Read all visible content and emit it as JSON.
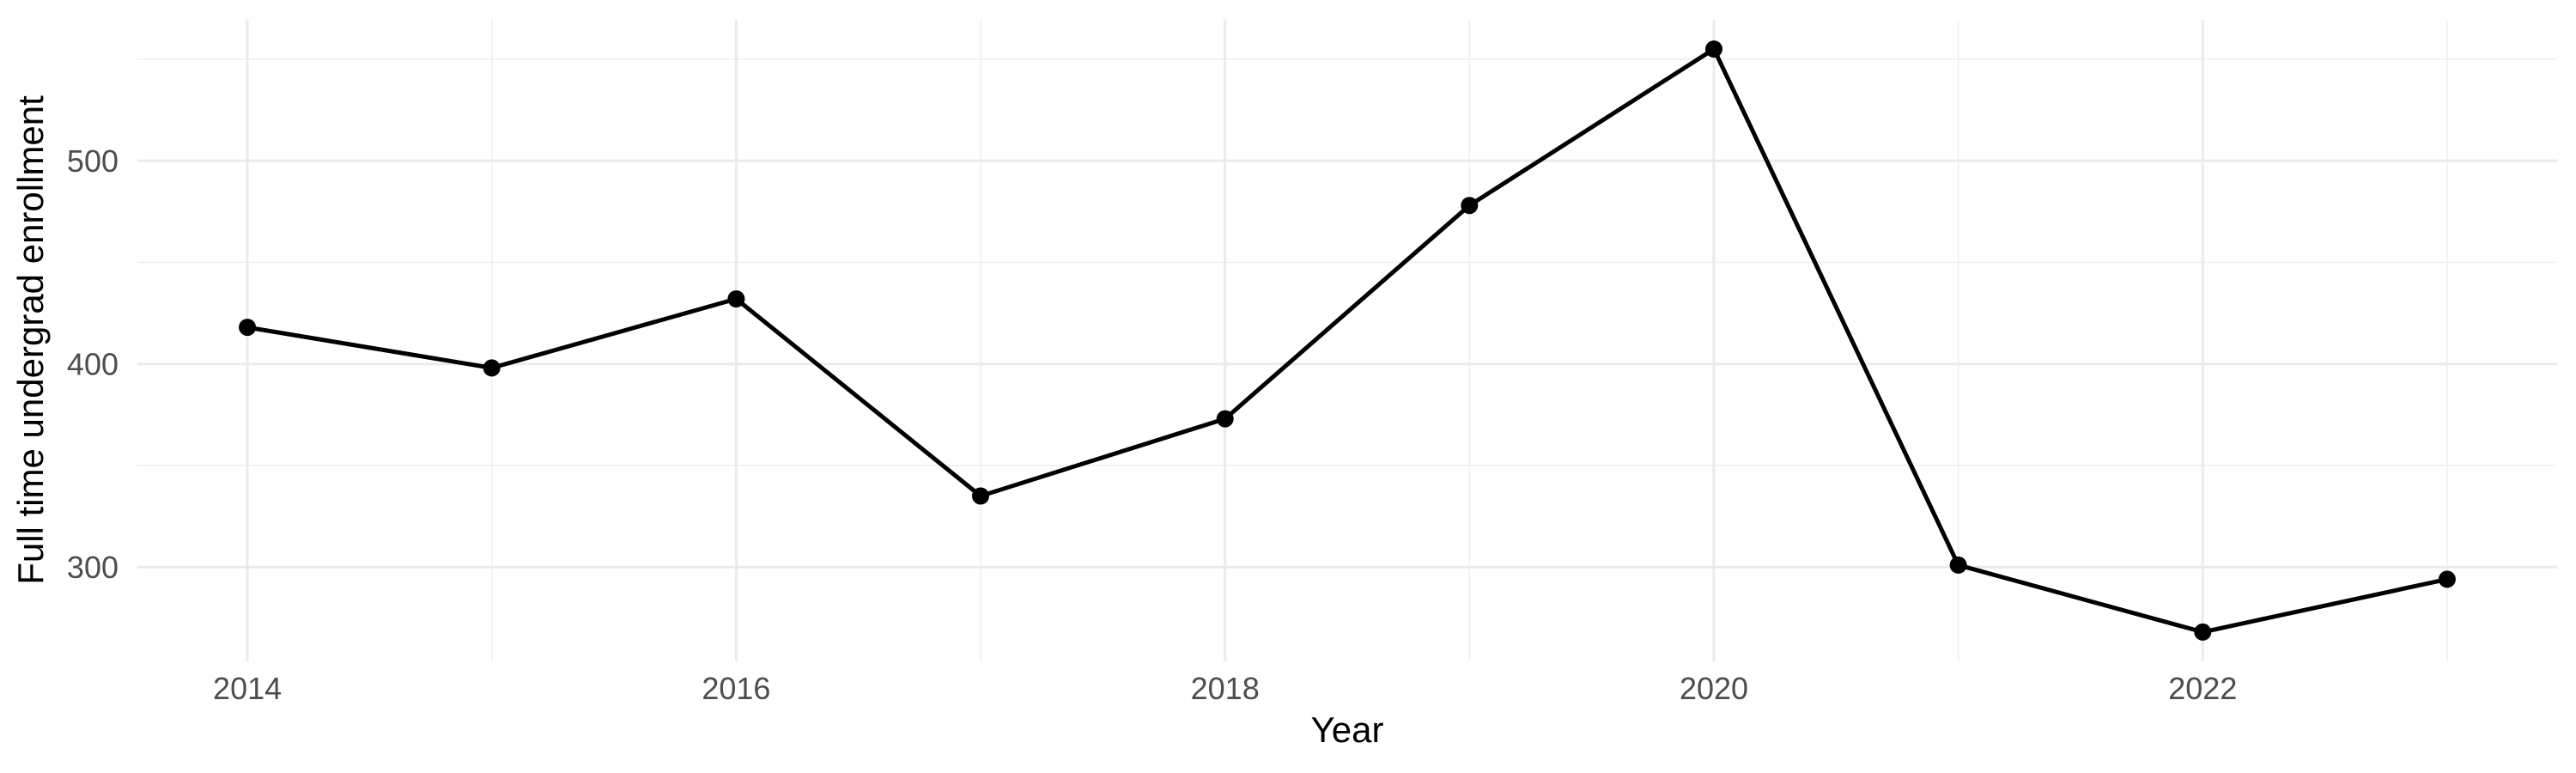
{
  "chart_data": {
    "type": "line",
    "title": "",
    "xlabel": "Year",
    "ylabel": "Full time undergrad enrollment",
    "x": [
      2014,
      2015,
      2016,
      2017,
      2018,
      2019,
      2020,
      2021,
      2022,
      2023
    ],
    "series": [
      {
        "name": "Full time undergrad enrollment",
        "values": [
          418,
          398,
          432,
          335,
          373,
          478,
          555,
          301,
          268,
          294
        ]
      }
    ],
    "x_major_ticks": [
      2014,
      2016,
      2018,
      2020,
      2022
    ],
    "x_tick_labels": [
      "2014",
      "2016",
      "2018",
      "2020",
      "2022"
    ],
    "x_minor_gridlines": [
      2015,
      2017,
      2019,
      2021,
      2023
    ],
    "y_major_ticks": [
      300,
      400,
      500
    ],
    "y_tick_labels": [
      "300",
      "400",
      "500"
    ],
    "y_minor_gridlines": [
      350,
      450,
      550
    ],
    "xlim": [
      2013.55,
      2023.45
    ],
    "ylim": [
      253.6,
      569.4
    ],
    "grid": true,
    "legend_position": "none",
    "point_marker": "filled-circle",
    "colors": {
      "line": "#000000",
      "point": "#000000",
      "grid_major": "#EBEBEB",
      "grid_minor": "#EFEFEF",
      "tick_text": "#4D4D4D",
      "axis_title_text": "#000000",
      "background": "#FFFFFF"
    }
  }
}
